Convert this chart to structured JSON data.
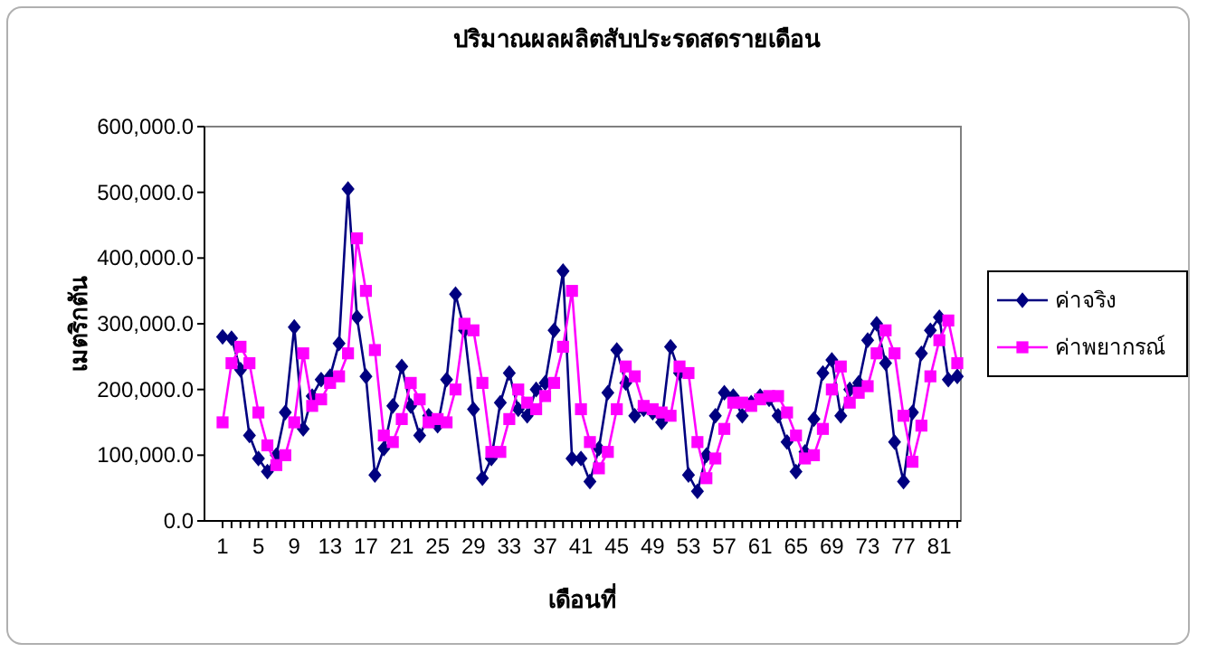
{
  "chart_data": {
    "type": "line",
    "title": "ปริมาณผลผลิตสับประรดสดรายเดือน",
    "xlabel": "เดือนที่",
    "ylabel": "เมตริกตัน",
    "categories": [
      "1",
      null,
      null,
      null,
      "5",
      null,
      null,
      null,
      "9",
      null,
      null,
      null,
      "13",
      null,
      null,
      null,
      "17",
      null,
      null,
      null,
      "21",
      null,
      null,
      null,
      "25",
      null,
      null,
      null,
      "29",
      null,
      null,
      null,
      "33",
      null,
      null,
      null,
      "37",
      null,
      null,
      null,
      "41",
      null,
      null,
      null,
      "45",
      null,
      null,
      null,
      "49",
      null,
      null,
      null,
      "53",
      null,
      null,
      null,
      "57",
      null,
      null,
      null,
      "61",
      null,
      null,
      null,
      "65",
      null,
      null,
      null,
      "69",
      null,
      null,
      null,
      "73",
      null,
      null,
      null,
      "77",
      null,
      null,
      null,
      "81",
      null,
      null
    ],
    "series": [
      {
        "name": "ค่าจริง",
        "color": "#000080",
        "marker": "diamond",
        "values": [
          280000,
          278000,
          230000,
          130000,
          95000,
          75000,
          100000,
          165000,
          295000,
          140000,
          190000,
          215000,
          220000,
          270000,
          505000,
          310000,
          220000,
          70000,
          110000,
          175000,
          235000,
          175000,
          130000,
          160000,
          145000,
          215000,
          345000,
          290000,
          170000,
          65000,
          95000,
          180000,
          225000,
          170000,
          160000,
          200000,
          210000,
          290000,
          380000,
          95000,
          95000,
          60000,
          110000,
          195000,
          260000,
          210000,
          160000,
          170000,
          165000,
          150000,
          265000,
          225000,
          70000,
          45000,
          100000,
          160000,
          195000,
          190000,
          160000,
          180000,
          190000,
          185000,
          160000,
          120000,
          75000,
          105000,
          155000,
          225000,
          245000,
          160000,
          200000,
          210000,
          275000,
          300000,
          240000,
          120000,
          60000,
          165000,
          255000,
          290000,
          310000,
          215000,
          220000
        ]
      },
      {
        "name": "ค่าพยากรณ์",
        "color": "#ff00ff",
        "marker": "square",
        "values": [
          150000,
          240000,
          265000,
          240000,
          165000,
          115000,
          85000,
          100000,
          150000,
          255000,
          175000,
          185000,
          210000,
          220000,
          255000,
          430000,
          350000,
          260000,
          130000,
          120000,
          155000,
          210000,
          185000,
          150000,
          155000,
          150000,
          200000,
          300000,
          290000,
          210000,
          105000,
          105000,
          155000,
          200000,
          180000,
          170000,
          190000,
          210000,
          265000,
          350000,
          170000,
          120000,
          80000,
          105000,
          170000,
          235000,
          220000,
          175000,
          170000,
          165000,
          160000,
          235000,
          225000,
          120000,
          65000,
          95000,
          140000,
          180000,
          180000,
          175000,
          185000,
          190000,
          190000,
          165000,
          130000,
          95000,
          100000,
          140000,
          200000,
          235000,
          180000,
          195000,
          205000,
          255000,
          290000,
          255000,
          160000,
          90000,
          145000,
          220000,
          275000,
          305000,
          240000
        ]
      }
    ],
    "ylim": [
      0,
      600000
    ],
    "yticks": [
      {
        "value": 0,
        "label": "0.0"
      },
      {
        "value": 100000,
        "label": "100,000.0"
      },
      {
        "value": 200000,
        "label": "200,000.0"
      },
      {
        "value": 300000,
        "label": "300,000.0"
      },
      {
        "value": 400000,
        "label": "400,000.0"
      },
      {
        "value": 500000,
        "label": "500,000.0"
      },
      {
        "value": 600000,
        "label": "600,000.0"
      }
    ],
    "grid": false,
    "legend": "right",
    "line_style": "solid"
  }
}
